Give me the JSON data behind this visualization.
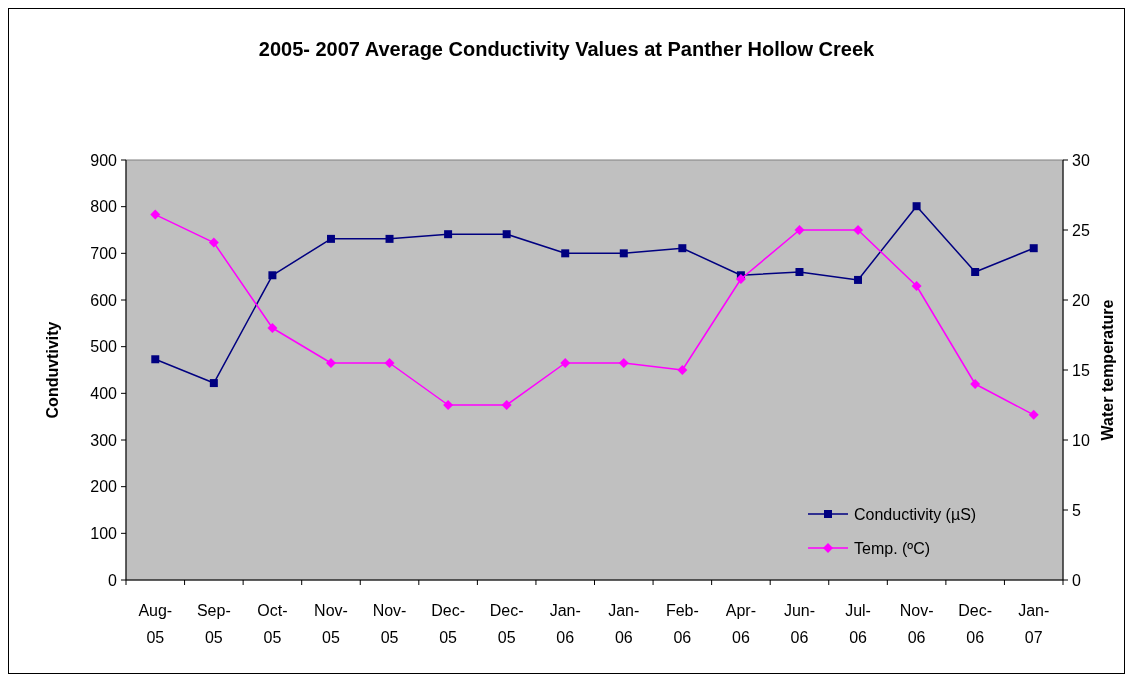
{
  "chart_data": {
    "type": "line",
    "title": "2005- 2007 Average Conductivity Values at Panther Hollow Creek",
    "categories": [
      "Aug-05",
      "Sep-05",
      "Oct-05",
      "Nov-05",
      "Nov-05",
      "Dec-05",
      "Dec-05",
      "Jan-06",
      "Jan-06",
      "Feb-06",
      "Apr-06",
      "Jun-06",
      "Jul-06",
      "Nov-06",
      "Dec-06",
      "Jan-07"
    ],
    "series": [
      {
        "name": "Conductivity (µS)",
        "color": "#000080",
        "marker": "square",
        "values": [
          473,
          422,
          653,
          731,
          731,
          741,
          741,
          700,
          700,
          711,
          653,
          660,
          643,
          801,
          660,
          711
        ]
      },
      {
        "name": "Temp. (ºC)",
        "color": "#ff00ff",
        "marker": "diamond",
        "axis": "y2",
        "values": [
          26.1,
          24.1,
          18,
          15.5,
          15.5,
          12.5,
          12.5,
          15.5,
          15.5,
          15,
          21.5,
          25,
          25,
          21,
          14,
          11.8
        ]
      }
    ],
    "ylabel": "Conduvtivity",
    "y2label": "Water temperature",
    "ylim": [
      0,
      900
    ],
    "yticks": [
      0,
      100,
      200,
      300,
      400,
      500,
      600,
      700,
      800,
      900
    ],
    "y2lim": [
      0,
      30
    ],
    "y2ticks": [
      0,
      5,
      10,
      15,
      20,
      25,
      30
    ],
    "legend": "bottom right",
    "grid": false
  }
}
